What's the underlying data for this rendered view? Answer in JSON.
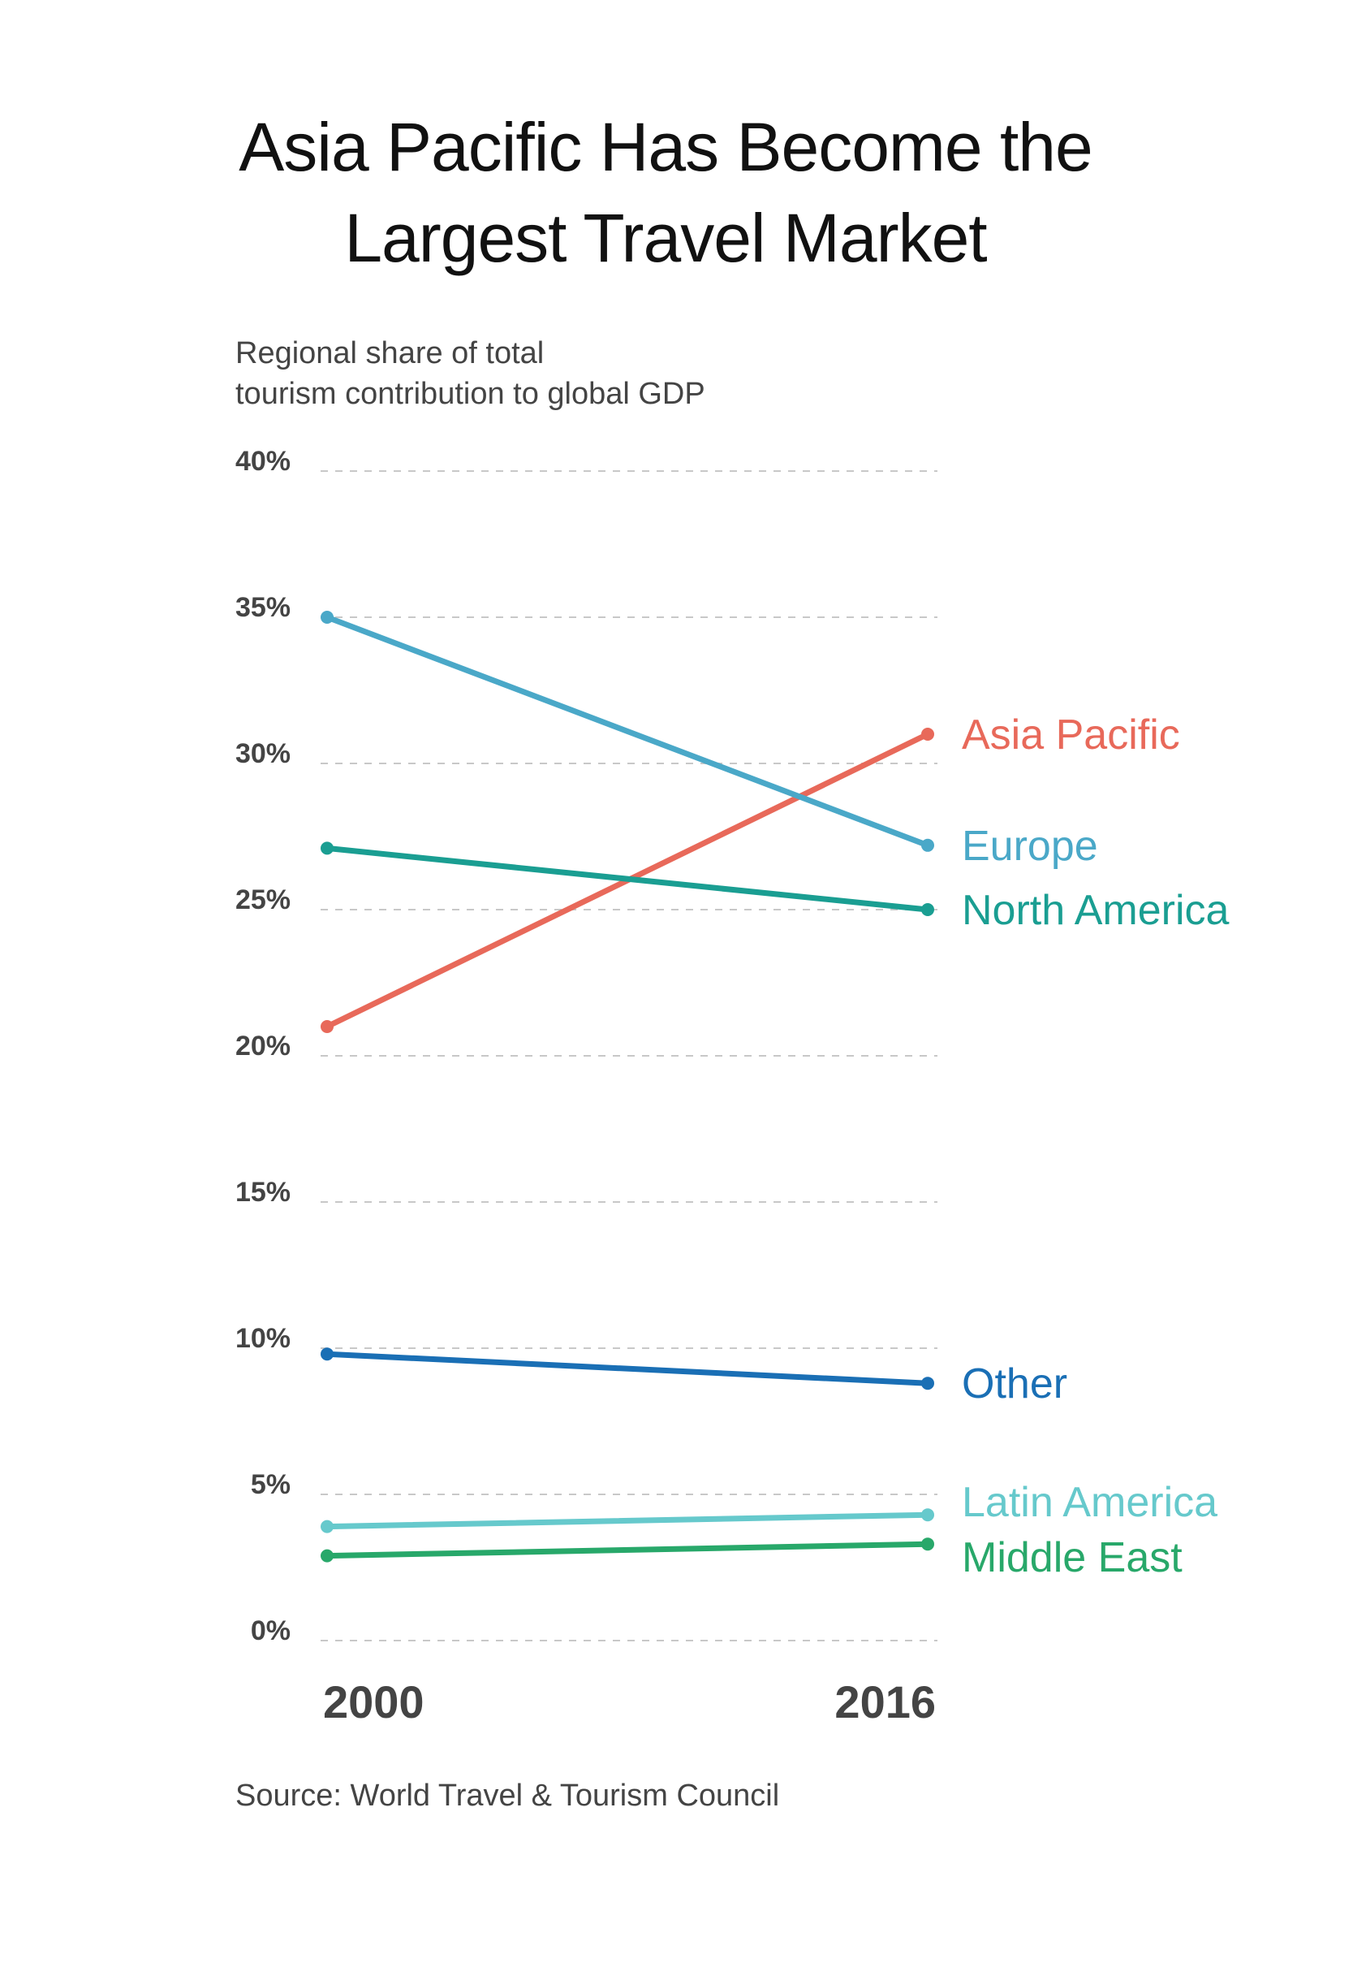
{
  "title_line1": "Asia Pacific Has Become the",
  "title_line2": "Largest Travel Market",
  "subtitle_line1": "Regional share of total",
  "subtitle_line2": "tourism contribution to global GDP",
  "source": "Source: World Travel & Tourism Council",
  "chart_data": {
    "type": "line",
    "x": [
      "2000",
      "2016"
    ],
    "ylim": [
      0,
      40
    ],
    "yticks": [
      0,
      5,
      10,
      15,
      20,
      25,
      30,
      35,
      40
    ],
    "ytick_labels": [
      "0%",
      "5%",
      "10%",
      "15%",
      "20%",
      "25%",
      "30%",
      "35%",
      "40%"
    ],
    "grid": "horizontal dashed",
    "legend": "direct labels at right end of lines",
    "series": [
      {
        "name": "Asia Pacific",
        "values": [
          21.0,
          31.0
        ],
        "color": "#e8695a"
      },
      {
        "name": "Europe",
        "values": [
          35.0,
          27.2
        ],
        "color": "#4aa8c8"
      },
      {
        "name": "North America",
        "values": [
          27.1,
          25.0
        ],
        "color": "#1a9e92"
      },
      {
        "name": "Other",
        "values": [
          9.8,
          8.8
        ],
        "color": "#1a6fb5"
      },
      {
        "name": "Latin America",
        "values": [
          3.9,
          4.3
        ],
        "color": "#66c9cc"
      },
      {
        "name": "Middle East",
        "values": [
          2.9,
          3.3
        ],
        "color": "#28a86a"
      }
    ]
  }
}
